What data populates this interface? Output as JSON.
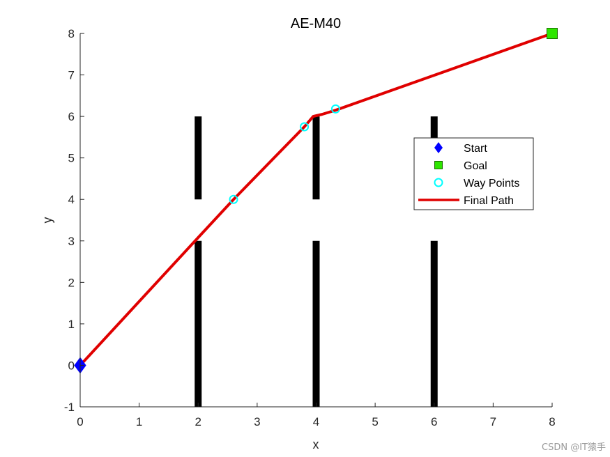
{
  "chart_data": {
    "type": "line",
    "title": "AE-M40",
    "xlabel": "x",
    "ylabel": "y",
    "xlim": [
      0,
      8
    ],
    "ylim": [
      -1,
      8
    ],
    "xticks": [
      0,
      1,
      2,
      3,
      4,
      5,
      6,
      7,
      8
    ],
    "yticks": [
      -1,
      0,
      1,
      2,
      3,
      4,
      5,
      6,
      7,
      8
    ],
    "grid": false,
    "legend_position": "right",
    "obstacles": [
      {
        "x": 2,
        "y": [
          -1,
          3
        ]
      },
      {
        "x": 2,
        "y": [
          4,
          6
        ]
      },
      {
        "x": 4,
        "y": [
          -1,
          3
        ]
      },
      {
        "x": 4,
        "y": [
          4,
          6
        ]
      },
      {
        "x": 6,
        "y": [
          -1,
          3
        ]
      },
      {
        "x": 6,
        "y": [
          4,
          6
        ]
      }
    ],
    "series": [
      {
        "name": "Start",
        "marker": "diamond",
        "color": "#0000ff",
        "points": [
          [
            0,
            0
          ]
        ]
      },
      {
        "name": "Goal",
        "marker": "square",
        "color": "#2ee600",
        "points": [
          [
            8,
            8
          ]
        ]
      },
      {
        "name": "Way Points",
        "marker": "circle",
        "color": "#00ffff",
        "points": [
          [
            2.6,
            4.0
          ],
          [
            3.8,
            5.75
          ],
          [
            4.33,
            6.18
          ]
        ]
      },
      {
        "name": "Final Path",
        "marker": "line",
        "color": "#e00000",
        "points": [
          [
            0,
            0
          ],
          [
            2,
            3.08
          ],
          [
            2.6,
            4.0
          ],
          [
            3.8,
            5.75
          ],
          [
            3.95,
            6.0
          ],
          [
            4.1,
            6.05
          ],
          [
            4.33,
            6.15
          ],
          [
            8,
            8
          ]
        ]
      }
    ]
  },
  "watermark": "CSDN @IT猿手"
}
